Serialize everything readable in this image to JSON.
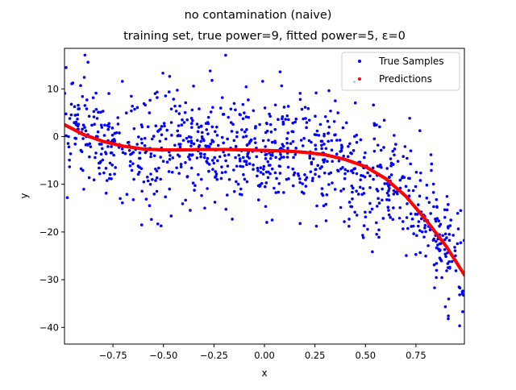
{
  "chart_data": {
    "type": "scatter",
    "title": "no contamination (naive)",
    "subtitle": "training set, true power=9, fitted power=5, ε=0",
    "xlabel": "x",
    "ylabel": "y",
    "xlim": [
      -0.99,
      0.99
    ],
    "ylim": [
      -43.5,
      18.5
    ],
    "xticks": [
      -0.75,
      -0.5,
      -0.25,
      0.0,
      0.25,
      0.5,
      0.75
    ],
    "xtick_labels": [
      "−0.75",
      "−0.50",
      "−0.25",
      "0.00",
      "0.25",
      "0.50",
      "0.75"
    ],
    "yticks": [
      10,
      0,
      -10,
      -20,
      -30,
      -40
    ],
    "ytick_labels": [
      "10",
      "0",
      "−10",
      "−20",
      "−30",
      "−40"
    ],
    "legend_position": "top-right",
    "series": [
      {
        "name": "True Samples",
        "color": "#0000ff",
        "sample_count": 1000,
        "noise_sd": 6,
        "trend_points": [
          [
            -0.99,
            3
          ],
          [
            -0.75,
            -2
          ],
          [
            -0.5,
            -3
          ],
          [
            -0.25,
            -3
          ],
          [
            0.0,
            -3
          ],
          [
            0.25,
            -4
          ],
          [
            0.5,
            -7
          ],
          [
            0.75,
            -15
          ],
          [
            0.99,
            -30
          ]
        ]
      },
      {
        "name": "Predictions",
        "color": "#ff0000",
        "points": [
          [
            -0.99,
            2.5
          ],
          [
            -0.9,
            0.5
          ],
          [
            -0.8,
            -1.0
          ],
          [
            -0.7,
            -2.0
          ],
          [
            -0.6,
            -2.6
          ],
          [
            -0.5,
            -2.8
          ],
          [
            -0.4,
            -2.8
          ],
          [
            -0.3,
            -2.7
          ],
          [
            -0.2,
            -2.7
          ],
          [
            -0.1,
            -2.8
          ],
          [
            0.0,
            -2.9
          ],
          [
            0.1,
            -3.0
          ],
          [
            0.2,
            -3.3
          ],
          [
            0.3,
            -3.8
          ],
          [
            0.4,
            -4.8
          ],
          [
            0.5,
            -6.3
          ],
          [
            0.6,
            -8.8
          ],
          [
            0.7,
            -12.5
          ],
          [
            0.8,
            -17.5
          ],
          [
            0.9,
            -23.0
          ],
          [
            0.99,
            -29.0
          ]
        ]
      }
    ]
  }
}
